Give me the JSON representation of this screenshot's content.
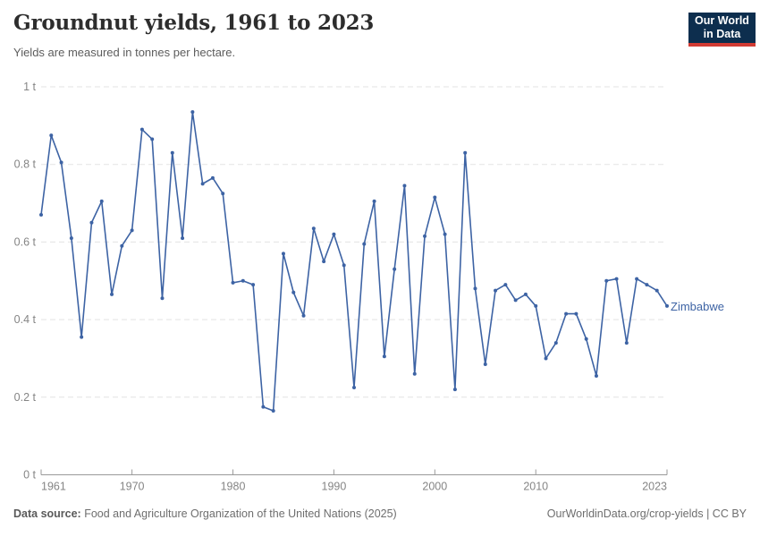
{
  "header": {
    "title": "Groundnut yields, 1961 to 2023",
    "subtitle": "Yields are measured in tonnes per hectare."
  },
  "logo": {
    "line1": "Our World",
    "line2": "in Data",
    "bg_color": "#0d2e4e",
    "accent_color": "#d23b34"
  },
  "entity_label": "Zimbabwe",
  "colors": {
    "series_blue": "#3d63a4",
    "grid": "#e3e3e3",
    "axis": "#9a9a9a",
    "tick_text": "#858585"
  },
  "chart_data": {
    "type": "line",
    "title": "Groundnut yields, 1961 to 2023",
    "xlabel": "",
    "ylabel": "tonnes per hectare",
    "xlim": [
      1961,
      2023
    ],
    "ylim": [
      0,
      1
    ],
    "grid": "horizontal-dashed",
    "legend_position": "end-of-line-label",
    "x_ticks": [
      1961,
      1970,
      1980,
      1990,
      2000,
      2010,
      2023
    ],
    "y_ticks": [
      {
        "value": 0,
        "label": "0 t"
      },
      {
        "value": 0.2,
        "label": "0.2 t"
      },
      {
        "value": 0.4,
        "label": "0.4 t"
      },
      {
        "value": 0.6,
        "label": "0.6 t"
      },
      {
        "value": 0.8,
        "label": "0.8 t"
      },
      {
        "value": 1,
        "label": "1 t"
      }
    ],
    "series": [
      {
        "name": "Zimbabwe",
        "color": "#3d63a4",
        "years": [
          1961,
          1962,
          1963,
          1964,
          1965,
          1966,
          1967,
          1968,
          1969,
          1970,
          1971,
          1972,
          1973,
          1974,
          1975,
          1976,
          1977,
          1978,
          1979,
          1980,
          1981,
          1982,
          1983,
          1984,
          1985,
          1986,
          1987,
          1988,
          1989,
          1990,
          1991,
          1992,
          1993,
          1994,
          1995,
          1996,
          1997,
          1998,
          1999,
          2000,
          2001,
          2002,
          2003,
          2004,
          2005,
          2006,
          2007,
          2008,
          2009,
          2010,
          2011,
          2012,
          2013,
          2014,
          2015,
          2016,
          2017,
          2018,
          2019,
          2020,
          2021,
          2022,
          2023
        ],
        "values": [
          0.67,
          0.875,
          0.805,
          0.61,
          0.355,
          0.65,
          0.705,
          0.465,
          0.59,
          0.63,
          0.89,
          0.865,
          0.455,
          0.83,
          0.61,
          0.935,
          0.75,
          0.765,
          0.725,
          0.495,
          0.5,
          0.49,
          0.175,
          0.165,
          0.57,
          0.47,
          0.41,
          0.635,
          0.55,
          0.62,
          0.54,
          0.225,
          0.595,
          0.705,
          0.305,
          0.53,
          0.745,
          0.26,
          0.615,
          0.715,
          0.62,
          0.22,
          0.83,
          0.48,
          0.285,
          0.475,
          0.49,
          0.45,
          0.465,
          0.435,
          0.3,
          0.34,
          0.415,
          0.415,
          0.35,
          0.255,
          0.5,
          0.505,
          0.34,
          0.505,
          0.49,
          0.475,
          0.435
        ]
      }
    ]
  },
  "footer": {
    "datasource_label": "Data source:",
    "datasource_text": " Food and Agriculture Organization of the United Nations (2025)",
    "credit": "OurWorldinData.org/crop-yields | CC BY"
  }
}
